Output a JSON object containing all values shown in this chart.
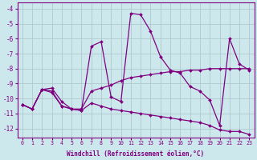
{
  "xlabel": "Windchill (Refroidissement éolien,°C)",
  "background_color": "#cce8ed",
  "grid_color": "#b0c8cc",
  "line_color": "#800080",
  "xlim": [
    -0.5,
    23.5
  ],
  "ylim": [
    -12.6,
    -3.6
  ],
  "yticks": [
    -12,
    -11,
    -10,
    -9,
    -8,
    -7,
    -6,
    -5,
    -4
  ],
  "xticks": [
    0,
    1,
    2,
    3,
    4,
    5,
    6,
    7,
    8,
    9,
    10,
    11,
    12,
    13,
    14,
    15,
    16,
    17,
    18,
    19,
    20,
    21,
    22,
    23
  ],
  "series1_x": [
    0,
    1,
    2,
    3,
    4,
    5,
    6,
    7,
    8,
    9,
    10,
    11,
    12,
    13,
    14,
    15,
    16,
    17,
    18,
    19,
    20,
    21,
    22,
    23
  ],
  "series1_y": [
    -10.4,
    -10.7,
    -9.4,
    -9.5,
    -10.5,
    -10.7,
    -10.8,
    -6.5,
    -6.2,
    -9.9,
    -10.2,
    -4.3,
    -4.4,
    -5.5,
    -7.2,
    -8.1,
    -8.3,
    -9.2,
    -9.5,
    -10.1,
    -11.8,
    -6.0,
    -7.7,
    -8.1
  ],
  "series2_x": [
    0,
    1,
    2,
    3,
    4,
    5,
    6,
    7,
    8,
    9,
    10,
    11,
    12,
    13,
    14,
    15,
    16,
    17,
    18,
    19,
    20,
    21,
    22,
    23
  ],
  "series2_y": [
    -10.4,
    -10.7,
    -9.4,
    -9.3,
    -10.2,
    -10.7,
    -10.7,
    -9.5,
    -9.3,
    -9.1,
    -8.8,
    -8.6,
    -8.5,
    -8.4,
    -8.3,
    -8.2,
    -8.2,
    -8.1,
    -8.1,
    -8.0,
    -8.0,
    -8.0,
    -8.0,
    -8.0
  ],
  "series3_x": [
    0,
    1,
    2,
    3,
    4,
    5,
    6,
    7,
    8,
    9,
    10,
    11,
    12,
    13,
    14,
    15,
    16,
    17,
    18,
    19,
    20,
    21,
    22,
    23
  ],
  "series3_y": [
    -10.4,
    -10.7,
    -9.4,
    -9.6,
    -10.5,
    -10.7,
    -10.8,
    -10.3,
    -10.5,
    -10.7,
    -10.8,
    -10.9,
    -11.0,
    -11.1,
    -11.2,
    -11.3,
    -11.4,
    -11.5,
    -11.6,
    -11.8,
    -12.1,
    -12.2,
    -12.2,
    -12.4
  ]
}
